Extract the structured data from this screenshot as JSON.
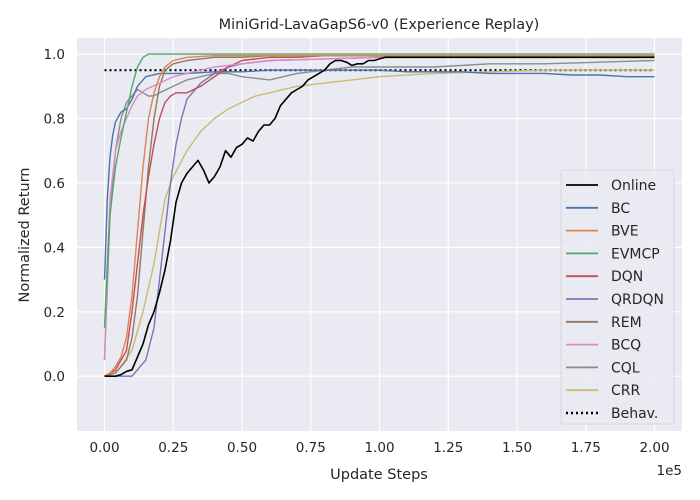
{
  "chart_data": {
    "type": "line",
    "title": "MiniGrid-LavaGapS6-v0 (Experience Replay)",
    "xlabel": "Update Steps",
    "ylabel": "Normalized Return",
    "x_offset_label": "1e5",
    "xlim": [
      -0.1,
      2.1
    ],
    "ylim": [
      -0.17,
      1.05
    ],
    "x_ticks": [
      0.0,
      0.25,
      0.5,
      0.75,
      1.0,
      1.25,
      1.5,
      1.75,
      2.0
    ],
    "x_tick_labels": [
      "0.00",
      "0.25",
      "0.50",
      "0.75",
      "1.00",
      "1.25",
      "1.50",
      "1.75",
      "2.00"
    ],
    "y_ticks": [
      0.0,
      0.2,
      0.4,
      0.6,
      0.8,
      1.0
    ],
    "y_tick_labels": [
      "0.0",
      "0.2",
      "0.4",
      "0.6",
      "0.8",
      "1.0"
    ],
    "grid": true,
    "legend_position": "lower-right",
    "background": "#eaeaf2",
    "series": [
      {
        "name": "Online",
        "color": "#000000",
        "style": "solid",
        "width": 1.6,
        "x": [
          0.0,
          0.02,
          0.04,
          0.06,
          0.08,
          0.1,
          0.12,
          0.14,
          0.16,
          0.18,
          0.2,
          0.22,
          0.24,
          0.26,
          0.28,
          0.3,
          0.32,
          0.34,
          0.36,
          0.38,
          0.4,
          0.42,
          0.44,
          0.46,
          0.48,
          0.5,
          0.52,
          0.54,
          0.56,
          0.58,
          0.6,
          0.62,
          0.64,
          0.66,
          0.68,
          0.7,
          0.72,
          0.74,
          0.76,
          0.78,
          0.8,
          0.82,
          0.84,
          0.86,
          0.88,
          0.9,
          0.92,
          0.94,
          0.96,
          0.98,
          1.0,
          1.02,
          1.04,
          1.06,
          1.1,
          1.2,
          1.3,
          1.4,
          1.5,
          1.6,
          1.7,
          1.8,
          1.9,
          2.0
        ],
        "y": [
          0.0,
          0.0,
          0.0,
          0.005,
          0.015,
          0.02,
          0.06,
          0.1,
          0.16,
          0.2,
          0.26,
          0.33,
          0.42,
          0.54,
          0.6,
          0.63,
          0.65,
          0.67,
          0.64,
          0.6,
          0.62,
          0.65,
          0.7,
          0.68,
          0.71,
          0.72,
          0.74,
          0.73,
          0.76,
          0.78,
          0.78,
          0.8,
          0.84,
          0.86,
          0.88,
          0.89,
          0.9,
          0.92,
          0.93,
          0.94,
          0.95,
          0.97,
          0.98,
          0.98,
          0.975,
          0.965,
          0.97,
          0.97,
          0.98,
          0.98,
          0.985,
          0.99,
          0.99,
          0.99,
          0.99,
          0.99,
          0.99,
          0.99,
          0.99,
          0.99,
          0.99,
          0.99,
          0.99,
          0.99
        ]
      },
      {
        "name": "BC",
        "color": "#4c72b0",
        "style": "solid",
        "width": 1.4,
        "x": [
          0.0,
          0.01,
          0.02,
          0.03,
          0.04,
          0.06,
          0.08,
          0.1,
          0.12,
          0.15,
          0.2,
          0.3,
          0.4,
          0.5,
          0.6,
          0.7,
          0.8,
          0.9,
          1.0,
          1.1,
          1.2,
          1.3,
          1.4,
          1.5,
          1.6,
          1.7,
          1.8,
          1.9,
          2.0
        ],
        "y": [
          0.3,
          0.55,
          0.68,
          0.75,
          0.79,
          0.82,
          0.83,
          0.86,
          0.9,
          0.93,
          0.94,
          0.94,
          0.945,
          0.945,
          0.95,
          0.95,
          0.95,
          0.95,
          0.95,
          0.945,
          0.945,
          0.945,
          0.94,
          0.94,
          0.94,
          0.935,
          0.935,
          0.93,
          0.93
        ]
      },
      {
        "name": "BVE",
        "color": "#dd8452",
        "style": "solid",
        "width": 1.4,
        "x": [
          0.0,
          0.02,
          0.04,
          0.06,
          0.08,
          0.1,
          0.12,
          0.14,
          0.16,
          0.18,
          0.2,
          0.22,
          0.25,
          0.3,
          0.4,
          0.6,
          1.0,
          1.5,
          2.0
        ],
        "y": [
          0.0,
          0.01,
          0.03,
          0.06,
          0.12,
          0.25,
          0.45,
          0.65,
          0.8,
          0.88,
          0.93,
          0.96,
          0.98,
          0.99,
          0.995,
          0.995,
          0.995,
          0.995,
          0.995
        ]
      },
      {
        "name": "EVMCP",
        "color": "#55a868",
        "style": "solid",
        "width": 1.4,
        "x": [
          0.0,
          0.01,
          0.02,
          0.04,
          0.06,
          0.08,
          0.1,
          0.12,
          0.14,
          0.16,
          0.18,
          0.2,
          0.3,
          0.5,
          1.0,
          1.5,
          2.0
        ],
        "y": [
          0.15,
          0.35,
          0.5,
          0.65,
          0.74,
          0.82,
          0.9,
          0.96,
          0.99,
          1.0,
          1.0,
          1.0,
          1.0,
          1.0,
          1.0,
          1.0,
          1.0
        ]
      },
      {
        "name": "DQN",
        "color": "#c44e52",
        "style": "solid",
        "width": 1.4,
        "x": [
          0.0,
          0.04,
          0.08,
          0.1,
          0.12,
          0.14,
          0.16,
          0.18,
          0.2,
          0.22,
          0.24,
          0.26,
          0.3,
          0.35,
          0.4,
          0.45,
          0.5,
          0.6,
          0.7,
          0.8,
          1.0,
          1.5,
          2.0
        ],
        "y": [
          0.0,
          0.02,
          0.08,
          0.2,
          0.35,
          0.5,
          0.62,
          0.72,
          0.8,
          0.85,
          0.87,
          0.88,
          0.88,
          0.9,
          0.93,
          0.96,
          0.98,
          0.99,
          0.99,
          0.995,
          0.995,
          0.995,
          0.995
        ]
      },
      {
        "name": "QRDQN",
        "color": "#8172b3",
        "style": "solid",
        "width": 1.4,
        "x": [
          0.0,
          0.05,
          0.1,
          0.15,
          0.18,
          0.2,
          0.22,
          0.24,
          0.26,
          0.28,
          0.3,
          0.35,
          0.4,
          0.45,
          0.5,
          0.6,
          0.8,
          1.0,
          1.5,
          2.0
        ],
        "y": [
          0.0,
          0.0,
          0.0,
          0.05,
          0.15,
          0.3,
          0.45,
          0.6,
          0.72,
          0.8,
          0.86,
          0.91,
          0.94,
          0.96,
          0.97,
          0.98,
          0.985,
          0.99,
          0.99,
          0.99
        ]
      },
      {
        "name": "REM",
        "color": "#937860",
        "style": "solid",
        "width": 1.4,
        "x": [
          0.0,
          0.04,
          0.08,
          0.1,
          0.12,
          0.14,
          0.16,
          0.18,
          0.2,
          0.22,
          0.25,
          0.3,
          0.35,
          0.4,
          0.5,
          0.6,
          0.8,
          1.0,
          1.5,
          2.0
        ],
        "y": [
          0.0,
          0.01,
          0.05,
          0.12,
          0.25,
          0.45,
          0.65,
          0.8,
          0.9,
          0.95,
          0.97,
          0.98,
          0.985,
          0.99,
          0.99,
          0.995,
          0.995,
          0.995,
          0.995,
          0.995
        ]
      },
      {
        "name": "BCQ",
        "color": "#da8bc3",
        "style": "solid",
        "width": 1.4,
        "x": [
          0.0,
          0.01,
          0.02,
          0.04,
          0.06,
          0.08,
          0.1,
          0.12,
          0.15,
          0.2,
          0.25,
          0.3,
          0.35,
          0.4,
          0.5,
          0.6,
          0.8,
          1.0,
          1.5,
          2.0
        ],
        "y": [
          0.05,
          0.35,
          0.55,
          0.7,
          0.76,
          0.8,
          0.84,
          0.87,
          0.89,
          0.91,
          0.93,
          0.94,
          0.95,
          0.96,
          0.97,
          0.98,
          0.985,
          0.99,
          0.995,
          0.995
        ]
      },
      {
        "name": "CQL",
        "color": "#8c8c8c",
        "style": "solid",
        "width": 1.4,
        "x": [
          0.0,
          0.02,
          0.04,
          0.06,
          0.08,
          0.1,
          0.12,
          0.14,
          0.16,
          0.18,
          0.2,
          0.25,
          0.3,
          0.35,
          0.4,
          0.45,
          0.5,
          0.6,
          0.7,
          0.8,
          0.9,
          1.0,
          1.2,
          1.4,
          1.6,
          1.8,
          2.0
        ],
        "y": [
          0.05,
          0.5,
          0.7,
          0.8,
          0.85,
          0.87,
          0.89,
          0.88,
          0.87,
          0.87,
          0.88,
          0.9,
          0.92,
          0.93,
          0.94,
          0.94,
          0.93,
          0.92,
          0.94,
          0.95,
          0.96,
          0.96,
          0.96,
          0.97,
          0.97,
          0.975,
          0.98
        ]
      },
      {
        "name": "CRR",
        "color": "#ccb974",
        "style": "solid",
        "width": 1.4,
        "x": [
          0.0,
          0.05,
          0.1,
          0.14,
          0.18,
          0.2,
          0.22,
          0.25,
          0.3,
          0.35,
          0.4,
          0.45,
          0.5,
          0.55,
          0.6,
          0.7,
          0.8,
          0.9,
          1.0,
          1.2,
          1.4,
          1.6,
          1.8,
          2.0
        ],
        "y": [
          0.0,
          0.02,
          0.08,
          0.2,
          0.35,
          0.45,
          0.55,
          0.62,
          0.7,
          0.76,
          0.8,
          0.83,
          0.85,
          0.87,
          0.88,
          0.9,
          0.91,
          0.92,
          0.93,
          0.94,
          0.945,
          0.95,
          0.95,
          0.95
        ]
      },
      {
        "name": "Behav.",
        "color": "#000000",
        "style": "dotted",
        "width": 2.2,
        "x": [
          0.0,
          2.0
        ],
        "y": [
          0.95,
          0.95
        ]
      }
    ]
  }
}
